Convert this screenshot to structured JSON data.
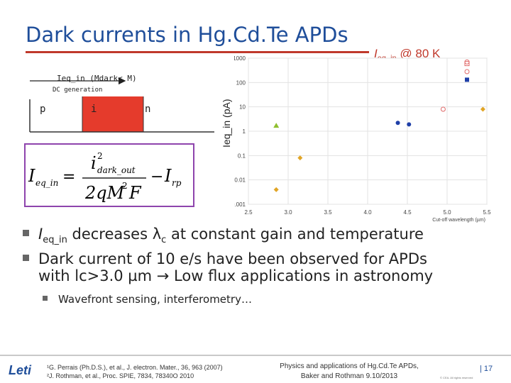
{
  "slide": {
    "title": "Dark currents in Hg.Cd.Te APDs",
    "chart_title_main": "I",
    "chart_title_sub": "eq_in",
    "chart_title_rest": " @ 80 K"
  },
  "diagram": {
    "top_label": "Ieq_in (Mdark< M)",
    "sub_label": "DC generation",
    "zone_p": "p",
    "zone_i": "i",
    "zone_n": "n"
  },
  "formula": {
    "lhs": "I",
    "lhs_sub": "eq_in",
    "eq": "=",
    "num": "i",
    "num_sup": "2",
    "num_sub": "dark_out",
    "den": "2qM",
    "den_sup": "2",
    "den_end": "F",
    "minus": "−",
    "rhs": "I",
    "rhs_sub": "rp"
  },
  "ylabel": "Ieq_in (pA)",
  "colors": {
    "title": "#1f4e9a",
    "accent_red": "#c0392b",
    "formula_border": "#8e44ad",
    "gold": "#e1a526",
    "green": "#8fbf2f",
    "navy": "#1f3fa8",
    "pink": "#e06a6a"
  },
  "bullets": [
    {
      "pre": "I",
      "pre_sub": "eq_in",
      "text": " decreases λ",
      "text_sub": "c",
      "text_rest": " at constant gain and temperature"
    },
    {
      "text": "Dark current of 10 e/s have been observed for APDs with lc>3.0 µm → Low flux applications in astronomy"
    }
  ],
  "sub_bullet": "Wavefront sensing, interferometry…",
  "footer": {
    "logo": "Leti",
    "ref1": "¹G. Perrais (Ph.D.S.), et al., J. electron. Mater., 36, 963 (2007)",
    "ref2": "²J.  Rothman, et al., Proc. SPIE, 7834, 78340O 2010",
    "event": "Physics and applications of Hg.Cd.Te APDs, Baker and Rothman 9.10/2013",
    "page": "| 17",
    "copyright": "© CEA. All rights reserved"
  },
  "chart_data": {
    "type": "scatter",
    "xlabel": "Cut-off wavelength (µm)",
    "ylabel": "Ieq_in (pA)",
    "y_scale": "log",
    "xlim": [
      2.5,
      5.5
    ],
    "ylim": [
      0.001,
      1000
    ],
    "x_ticks": [
      "2.5",
      "3.0",
      "3.5",
      "4.0",
      "4.5",
      "5.0",
      "5.5"
    ],
    "x_tick_values": [
      2.5,
      3.0,
      3.5,
      4.0,
      4.5,
      5.0,
      5.5
    ],
    "y_ticks": [
      "0.001",
      "0.01",
      "0.1",
      "1",
      "10",
      "100",
      "1000"
    ],
    "y_tick_values": [
      0.001,
      0.01,
      0.1,
      1,
      10,
      100,
      1000
    ],
    "grid": true,
    "series": [
      {
        "marker": "diamond",
        "color": "#e1a526",
        "points": [
          [
            2.85,
            0.004
          ],
          [
            3.15,
            0.08
          ],
          [
            5.45,
            8
          ]
        ]
      },
      {
        "marker": "triangle",
        "color": "#8fbf2f",
        "points": [
          [
            2.85,
            1.7
          ]
        ]
      },
      {
        "marker": "circle",
        "color": "#1f3fa8",
        "points": [
          [
            4.38,
            2.2
          ],
          [
            4.52,
            1.9
          ]
        ]
      },
      {
        "marker": "square",
        "color": "#1f3fa8",
        "points": [
          [
            5.25,
            130
          ]
        ]
      },
      {
        "marker": "circle-open",
        "color": "#e06a6a",
        "points": [
          [
            4.95,
            8
          ],
          [
            5.25,
            700
          ],
          [
            5.25,
            280
          ]
        ]
      },
      {
        "marker": "square-open",
        "color": "#e06a6a",
        "points": [
          [
            5.25,
            600
          ]
        ]
      }
    ]
  }
}
